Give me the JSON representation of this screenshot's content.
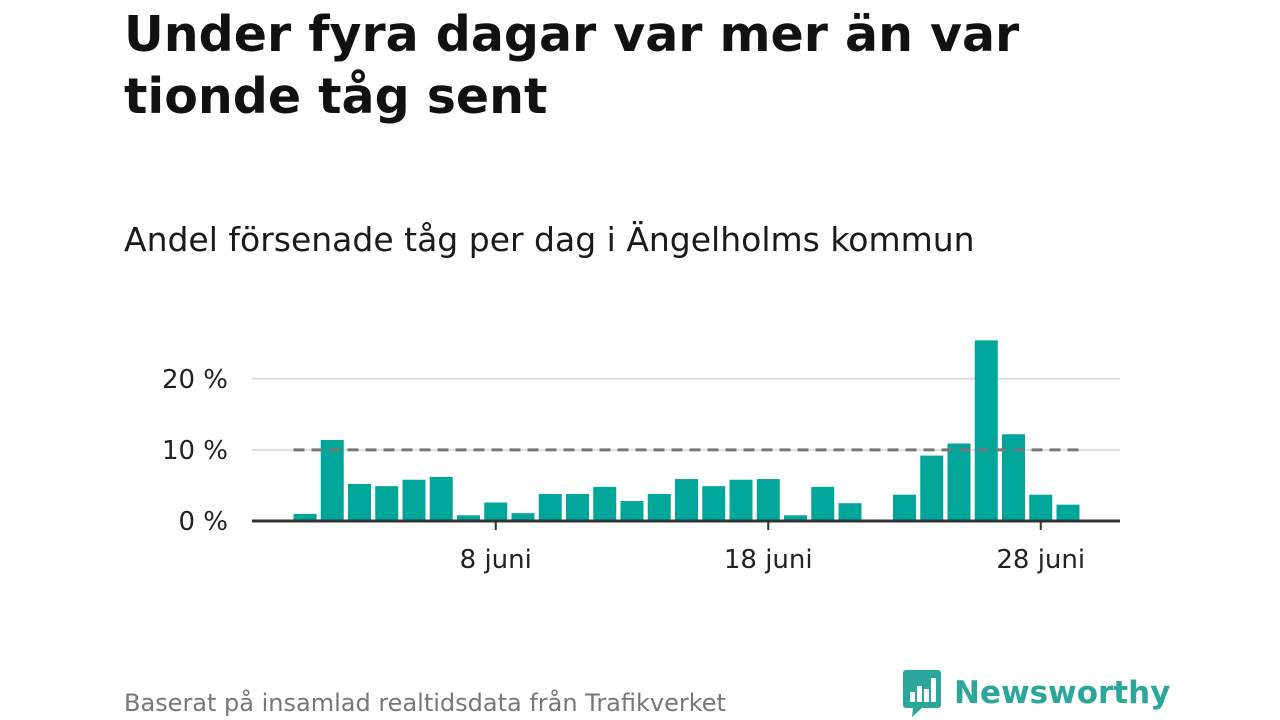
{
  "header": {
    "title": "Under fyra dagar var mer än var tionde tåg sent",
    "subtitle": "Andel försenade tåg per dag i Ängelholms kommun"
  },
  "chart_data": {
    "type": "bar",
    "x_unit": "day of June",
    "x": [
      1,
      2,
      3,
      4,
      5,
      6,
      7,
      8,
      9,
      10,
      11,
      12,
      13,
      14,
      15,
      16,
      17,
      18,
      19,
      20,
      21,
      22,
      23,
      24,
      25,
      26,
      27,
      28,
      29
    ],
    "values": [
      1.0,
      11.4,
      5.2,
      4.9,
      5.8,
      6.2,
      0.8,
      2.6,
      1.1,
      3.8,
      3.8,
      4.8,
      2.8,
      3.8,
      5.9,
      4.9,
      5.8,
      5.9,
      0.8,
      4.8,
      2.5,
      0,
      3.7,
      9.2,
      10.9,
      25.4,
      12.2,
      3.7,
      2.3
    ],
    "reference_line": {
      "value": 10,
      "style": "dashed"
    },
    "ylim": [
      0,
      27
    ],
    "y_ticks": [
      {
        "value": 0,
        "label": "0 %"
      },
      {
        "value": 10,
        "label": "10 %"
      },
      {
        "value": 20,
        "label": "20 %"
      }
    ],
    "x_ticks": [
      {
        "value": 8,
        "label": "8 juni"
      },
      {
        "value": 18,
        "label": "18 juni"
      },
      {
        "value": 28,
        "label": "28 juni"
      }
    ],
    "grid": "horizontal",
    "colors": {
      "bar": "#00a69a",
      "grid": "#dddddd",
      "reference": "#777777",
      "axis": "#333333"
    }
  },
  "footer": {
    "source": "Baserat på insamlad realtidsdata från Trafikverket",
    "brand": "Newsworthy",
    "brand_color": "#2aa69a",
    "brand_icon": "bar-chart-speech-bubble-icon"
  }
}
